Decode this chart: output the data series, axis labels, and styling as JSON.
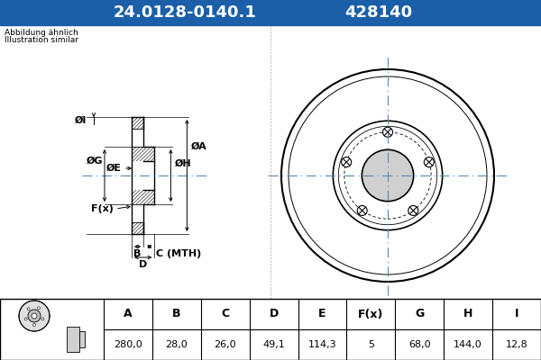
{
  "title_part": "24.0128-0140.1",
  "title_code": "428140",
  "title_bg": "#1a5fa8",
  "title_text_color": "#ffffff",
  "bg_color": "#ffffff",
  "outer_bg": "#b8d4e8",
  "note_line1": "Abbildung ähnlich",
  "note_line2": "Illustration similar",
  "table_headers": [
    "A",
    "B",
    "C",
    "D",
    "E",
    "F(x)",
    "G",
    "H",
    "I"
  ],
  "table_values": [
    "280,0",
    "28,0",
    "26,0",
    "49,1",
    "114,3",
    "5",
    "68,0",
    "144,0",
    "12,8"
  ],
  "centerline_color": "#5588bb",
  "hatch_color": "#333333",
  "line_color": "#000000"
}
